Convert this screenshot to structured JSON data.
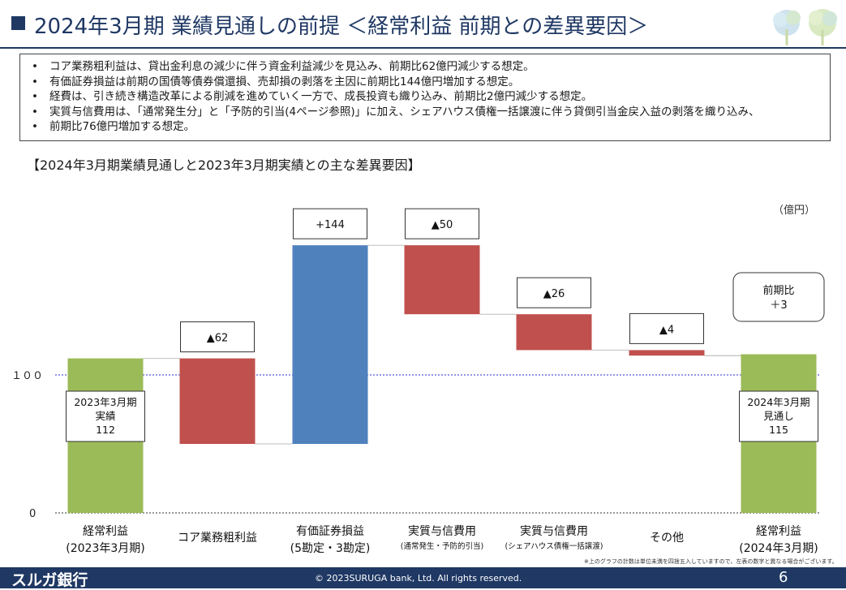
{
  "header": {
    "title": "2024年3月期 業績見通しの前提 ＜経常利益 前期との差異要因＞",
    "logo": "tree-logo-icon"
  },
  "bullets": [
    "コア業務粗利益は、貸出金利息の減少に伴う資金利益減少を見込み、前期比62億円減少する想定。",
    "有価証券損益は前期の国債等債券償還損、売却損の剥落を主因に前期比144億円増加する想定。",
    "経費は、引き続き構造改革による削減を進めていく一方で、成長投資も織り込み、前期比2億円減少する想定。",
    "実質与信費用は、「通常発生分」と「予防的引当(4ページ参照)」に加え、シェアハウス債権一括譲渡に伴う貸倒引当金戻入益の剥落を織り込み、",
    "前期比76億円増加する想定。"
  ],
  "chart_data": {
    "type": "waterfall",
    "title": "【2024年3月期業績見通しと2023年3月期実績との主な差異要因】",
    "unit": "（億円）",
    "y_ticks": [
      "１００",
      "0"
    ],
    "reference_line": 100,
    "ylim": [
      0,
      200
    ],
    "colors": {
      "total": "#9bbb59",
      "increase": "#4f81bd",
      "decrease": "#c0504d"
    },
    "bars": [
      {
        "category": [
          "経常利益",
          "(2023年3月期)"
        ],
        "kind": "total",
        "start": 0,
        "end": 112,
        "callout": "",
        "inner_label": [
          "2023年3月期",
          "実績",
          "112"
        ]
      },
      {
        "category": [
          "コア業務粗利益"
        ],
        "kind": "decrease",
        "start": 112,
        "end": 50,
        "callout": "▲62",
        "inner_label": []
      },
      {
        "category": [
          "有価証券損益",
          "(5勘定・3勘定)"
        ],
        "kind": "increase",
        "start": 50,
        "end": 194,
        "callout": "+144",
        "inner_label": []
      },
      {
        "category": [
          "実質与信費用",
          "(通常発生・予防的引当)"
        ],
        "kind": "decrease",
        "start": 194,
        "end": 144,
        "callout": "▲50",
        "inner_label": []
      },
      {
        "category": [
          "実質与信費用",
          "(シェアハウス債権一括譲渡)"
        ],
        "kind": "decrease",
        "start": 144,
        "end": 118,
        "callout": "▲26",
        "inner_label": []
      },
      {
        "category": [
          "その他"
        ],
        "kind": "decrease",
        "start": 118,
        "end": 114,
        "callout": "▲4",
        "inner_label": []
      },
      {
        "category": [
          "経常利益",
          "(2024年3月期)"
        ],
        "kind": "total",
        "start": 0,
        "end": 115,
        "callout": "",
        "inner_label": [
          "2024年3月期",
          "見通し",
          "115"
        ]
      }
    ],
    "summary_callout": [
      "前期比",
      "＋3"
    ]
  },
  "footnote": "※上のグラフの計数は単位未満を四捨五入していますので、左表の数字と異なる場合がございます。",
  "footer": {
    "brand": "スルガ銀行",
    "copyright": "© 2023SURUGA bank, Ltd. All rights reserved.",
    "page": "6"
  }
}
